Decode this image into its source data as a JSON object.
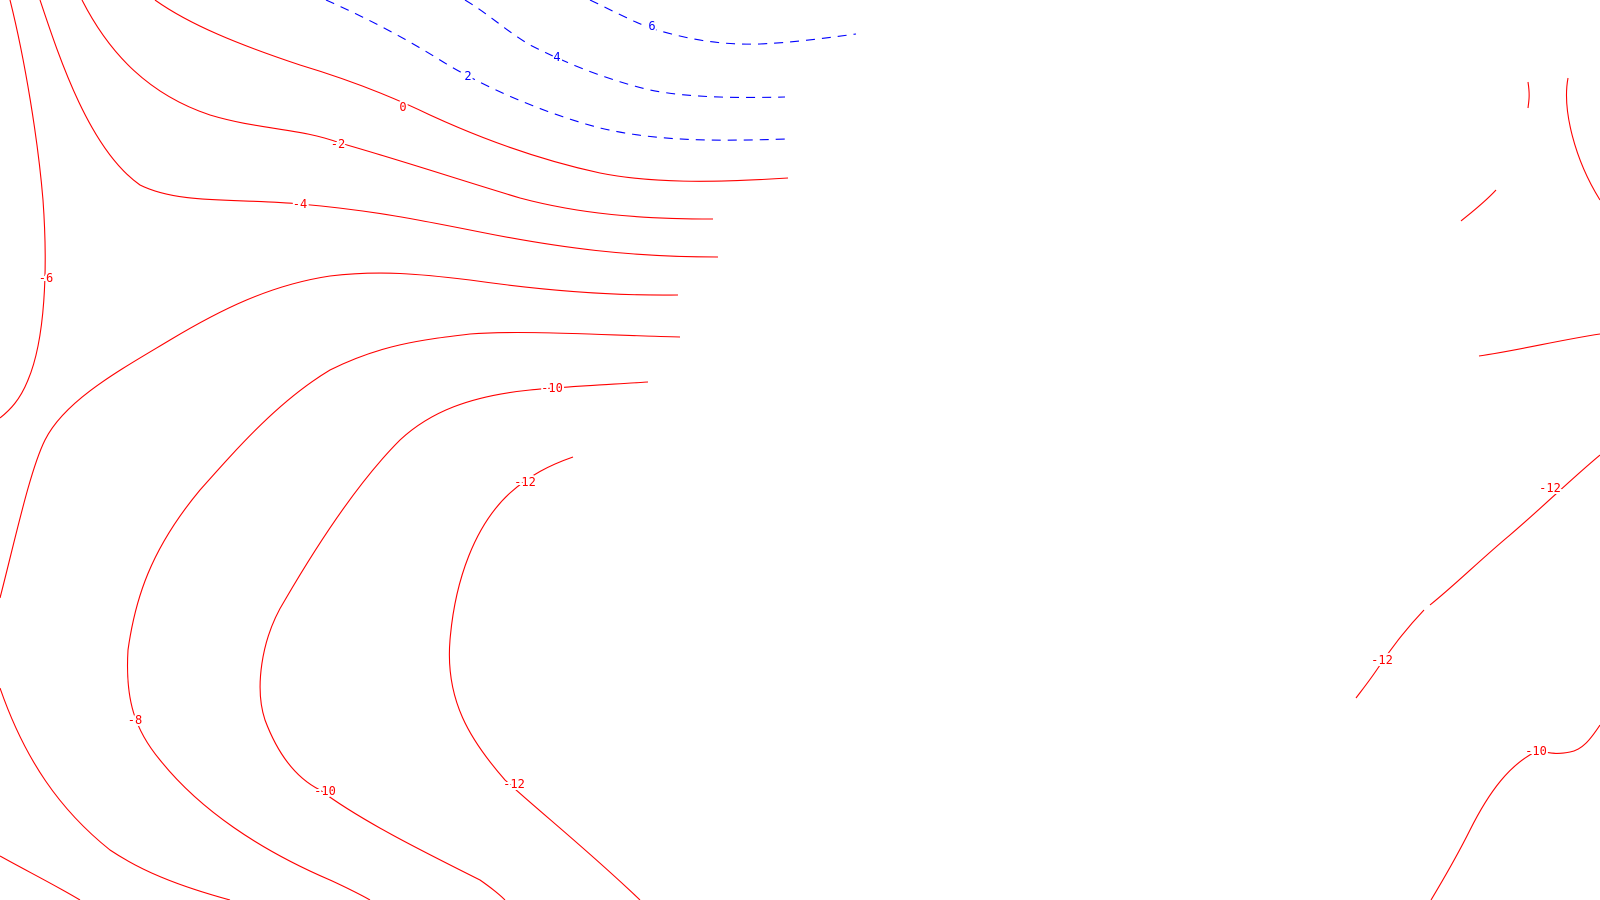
{
  "map": {
    "colors": {
      "positive": "#0000ff",
      "negative": "#ff0000",
      "background": "#ffffff"
    },
    "line_styles": {
      "positive": "dashed",
      "negative": "solid"
    },
    "contours": [
      {
        "id": "c6",
        "value": 6,
        "sign": "positive",
        "label": "6"
      },
      {
        "id": "c4",
        "value": 4,
        "sign": "positive",
        "label": "4"
      },
      {
        "id": "c2",
        "value": 2,
        "sign": "positive",
        "label": "2"
      },
      {
        "id": "c0",
        "value": 0,
        "sign": "negative",
        "label": "0"
      },
      {
        "id": "cm2",
        "value": -2,
        "sign": "negative",
        "label": "-2"
      },
      {
        "id": "cm4",
        "value": -4,
        "sign": "negative",
        "label": "-4"
      },
      {
        "id": "cm6",
        "value": -6,
        "sign": "negative",
        "label": "-6"
      },
      {
        "id": "cm8",
        "value": -8,
        "sign": "negative",
        "label": "-8"
      },
      {
        "id": "cm10",
        "value": -10,
        "sign": "negative",
        "label": "-10"
      },
      {
        "id": "cm12",
        "value": -12,
        "sign": "negative",
        "label": "-12"
      },
      {
        "id": "cm12r",
        "value": -12,
        "sign": "negative",
        "label": "-12"
      },
      {
        "id": "cm10r",
        "value": -10,
        "sign": "negative",
        "label": "-10"
      }
    ]
  }
}
